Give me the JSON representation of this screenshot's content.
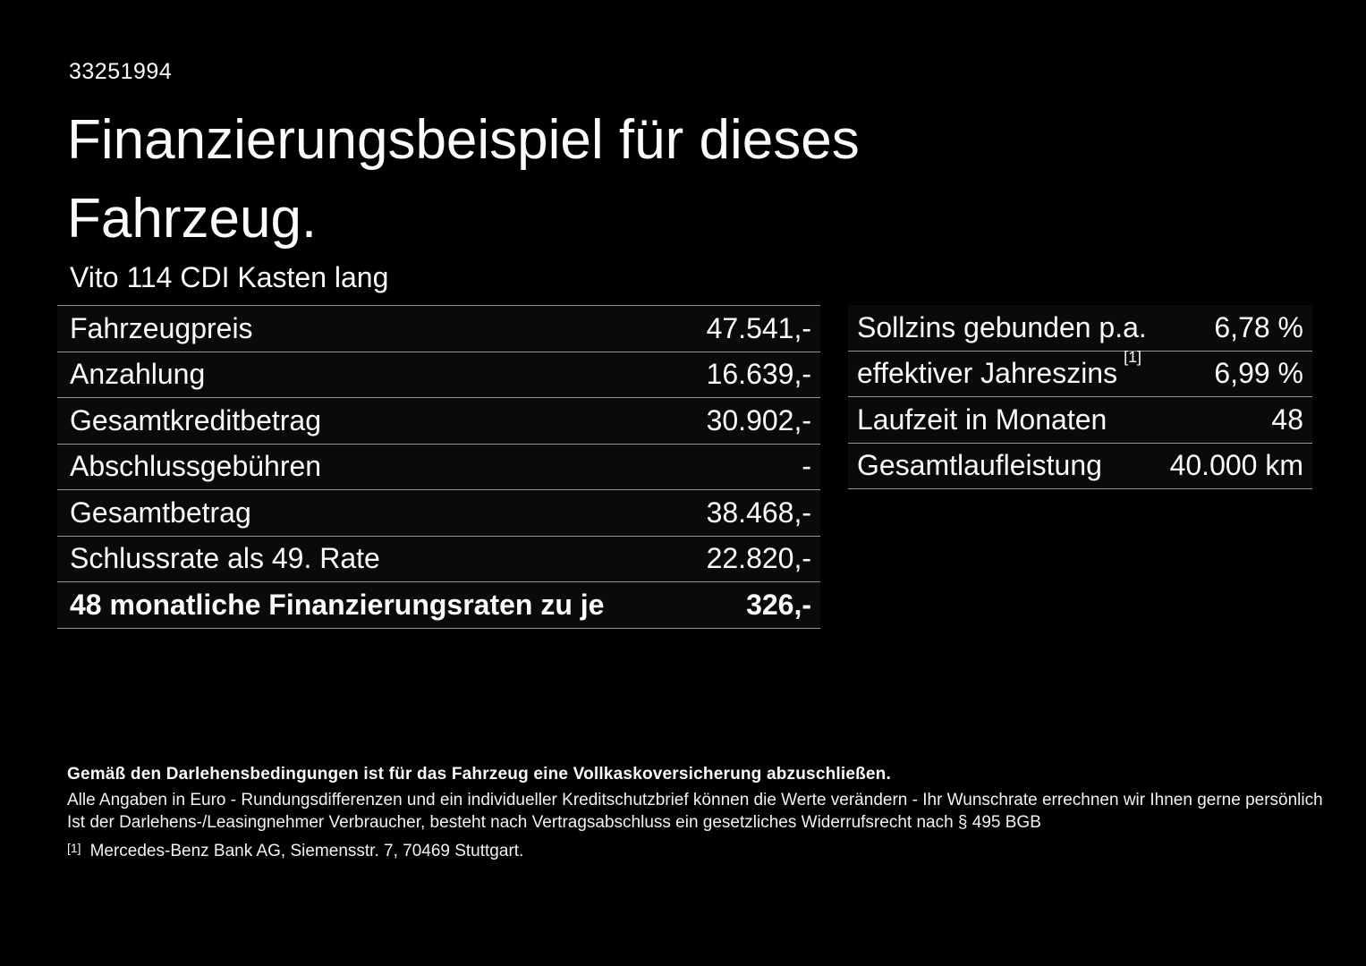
{
  "page": {
    "id_number": "33251994",
    "title": "Finanzierungsbeispiel für dieses\nFahrzeug.",
    "vehicle_name": "Vito 114 CDI Kasten lang"
  },
  "finance_table": {
    "rows": [
      {
        "label": "Fahrzeugpreis",
        "value": "47.541,-"
      },
      {
        "label": "Anzahlung",
        "value": "16.639,-"
      },
      {
        "label": "Gesamtkreditbetrag",
        "value": "30.902,-"
      },
      {
        "label": "Abschlussgebühren",
        "value": "-"
      },
      {
        "label": "Gesamtbetrag",
        "value": "38.468,-"
      },
      {
        "label": "Schlussrate als 49. Rate",
        "value": "22.820,-"
      },
      {
        "label": "48 monatliche Finanzierungsraten zu je",
        "value": "326,-"
      }
    ]
  },
  "conditions_table": {
    "rows": [
      {
        "label": "Sollzins gebunden p.a.",
        "value": "6,78 %"
      },
      {
        "label": "effektiver Jahreszins",
        "footnote_marker": "[1]",
        "value": "6,99 %"
      },
      {
        "label": "Laufzeit in Monaten",
        "value": "48"
      },
      {
        "label": "Gesamtlaufleistung",
        "value": "40.000 km"
      }
    ]
  },
  "footer": {
    "line_bold": "Gemäß den Darlehensbedingungen ist für das Fahrzeug eine Vollkaskoversicherung abzuschließen.",
    "line_2": "Alle Angaben in Euro - Rundungsdifferenzen und ein individueller Kreditschutzbrief können die Werte verändern - Ihr Wunschrate errechnen wir Ihnen gerne persönlich",
    "line_3": "Ist der Darlehens-/Leasingnehmer Verbraucher, besteht nach Vertragsabschluss ein gesetzliches Widerrufsrecht nach § 495 BGB",
    "footnote_marker": "[1]",
    "footnote_text": "Mercedes-Benz Bank AG, Siemensstr. 7, 70469 Stuttgart."
  },
  "colors": {
    "background": "#000000",
    "text": "#fbfbfb",
    "divider": "#949494"
  }
}
